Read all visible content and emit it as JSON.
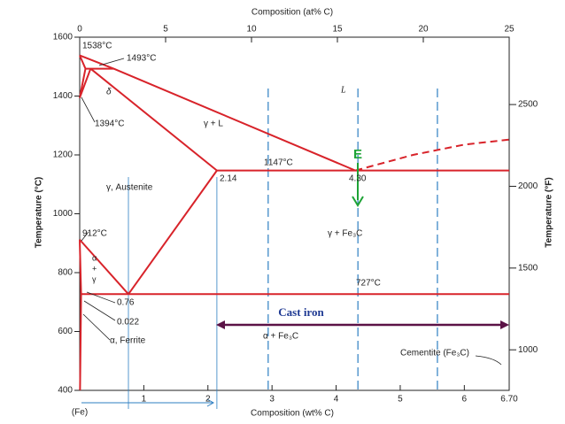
{
  "chart_data": {
    "type": "line",
    "xlabel": "Composition (wt% C)",
    "x2label": "Composition (at% C)",
    "ylabel": "Temperature (°C)",
    "y2label": "Temperature (°F)",
    "xlim": [
      0,
      6.7
    ],
    "xticks": [
      1,
      2,
      3,
      4,
      5,
      6,
      {
        "value": 6.7,
        "label": "6.70"
      }
    ],
    "x2lim": [
      0,
      25
    ],
    "x2ticks": [
      0,
      5,
      10,
      15,
      20,
      25
    ],
    "ylim": [
      400,
      1600
    ],
    "yticks": [
      400,
      600,
      800,
      1000,
      1200,
      1400,
      1600
    ],
    "y2lim": [
      752,
      2912
    ],
    "y2ticks": [
      1000,
      1500,
      2000,
      2500
    ],
    "series": [
      {
        "color": "#d8232a",
        "dashed": false,
        "x": [
          0,
          0.53,
          4.3
        ],
        "values": [
          1538,
          1493,
          1147
        ]
      },
      {
        "color": "#d8232a",
        "dashed": true,
        "x": [
          4.3,
          5.2,
          6.0,
          6.7
        ],
        "values": [
          1147,
          1200,
          1235,
          1252
        ]
      },
      {
        "color": "#d8232a",
        "dashed": false,
        "x": [
          0,
          0.09
        ],
        "values": [
          1538,
          1493
        ]
      },
      {
        "color": "#d8232a",
        "dashed": false,
        "x": [
          0.09,
          0.53
        ],
        "values": [
          1493,
          1493
        ]
      },
      {
        "color": "#d8232a",
        "dashed": false,
        "x": [
          0.17,
          2.14
        ],
        "values": [
          1493,
          1147
        ]
      },
      {
        "color": "#d8232a",
        "dashed": false,
        "x": [
          0,
          0.09
        ],
        "values": [
          1394,
          1493
        ]
      },
      {
        "color": "#d8232a",
        "dashed": false,
        "x": [
          0,
          0.17
        ],
        "values": [
          1394,
          1493
        ]
      },
      {
        "color": "#d8232a",
        "dashed": false,
        "x": [
          2.14,
          6.7
        ],
        "values": [
          1147,
          1147
        ]
      },
      {
        "color": "#d8232a",
        "dashed": false,
        "x": [
          2.14,
          0.76
        ],
        "values": [
          1147,
          727
        ]
      },
      {
        "color": "#d8232a",
        "dashed": false,
        "x": [
          0,
          0.76
        ],
        "values": [
          912,
          727
        ]
      },
      {
        "color": "#d8232a",
        "dashed": false,
        "x": [
          0.022,
          6.7
        ],
        "values": [
          727,
          727
        ]
      },
      {
        "color": "#d8232a",
        "dashed": false,
        "x": [
          0,
          0.022,
          0.005
        ],
        "values": [
          912,
          727,
          400
        ]
      }
    ],
    "guides": [
      {
        "color": "#2e7fc2",
        "dashed": true,
        "x": 2.94
      },
      {
        "color": "#2e7fc2",
        "dashed": true,
        "x": 4.34
      },
      {
        "color": "#2e7fc2",
        "dashed": true,
        "x": 5.58
      },
      {
        "color": "#2e7fc2",
        "dashed": false,
        "x": 0.76
      },
      {
        "color": "#2e7fc2",
        "dashed": false,
        "x": 2.14
      }
    ],
    "annotations": {
      "t1538": "1538°C",
      "t1493": "1493°C",
      "delta": "δ",
      "t1394": "1394°C",
      "gamma_l": "γ + L",
      "liquid": "L",
      "t1147": "1147°C",
      "c214": "2.14",
      "c430": "4.30",
      "austenite": "γ, Austenite",
      "t912": "912°C",
      "alpha_gamma": [
        "α",
        "+",
        "γ"
      ],
      "c076": "0.76",
      "c0022": "0.022",
      "ferrite": "α, Ferrite",
      "gamma_fe3c": "γ + Fe₃C",
      "t727": "727°C",
      "cast_iron": "Cast iron",
      "alpha_fe3c": "α + Fe₃C",
      "cementite": "Cementite (Fe₃C)",
      "fe": "(Fe)",
      "e": "E"
    }
  }
}
